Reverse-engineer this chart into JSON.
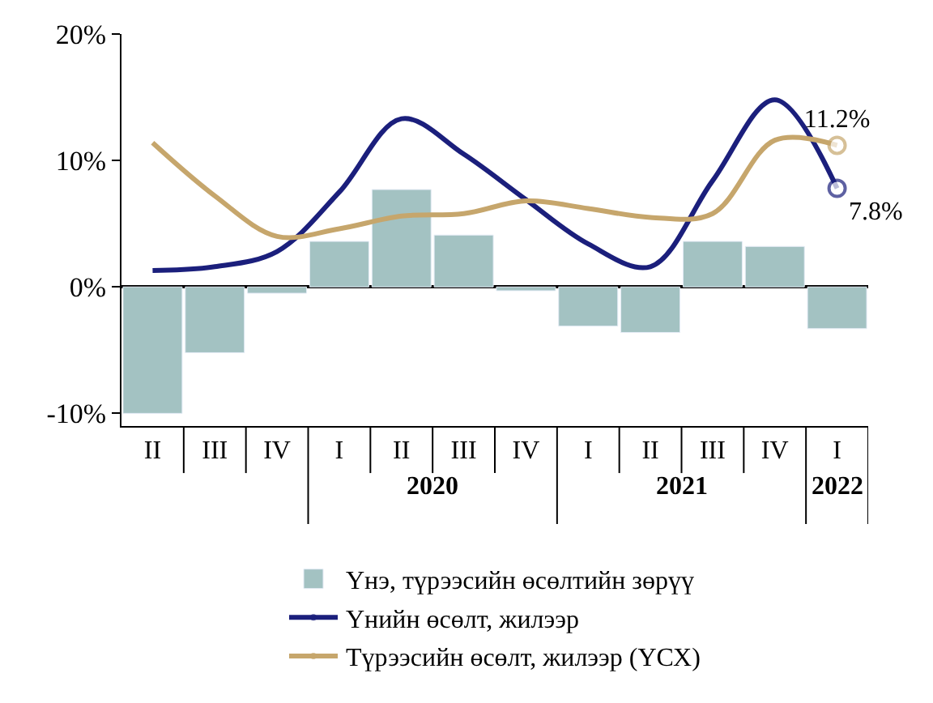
{
  "chart_data": {
    "type": "bar",
    "categories": [
      "II",
      "III",
      "IV",
      "I",
      "II",
      "III",
      "IV",
      "I",
      "II",
      "III",
      "IV",
      "I"
    ],
    "annotations": [
      "2020",
      "2021",
      "2022"
    ],
    "series": [
      {
        "name": "Үнэ, түрээсийн өсөлтийн зөрүү",
        "color": "#a3c2c2",
        "values": [
          -10,
          -5.2,
          -0.5,
          3.6,
          7.7,
          4.1,
          -0.3,
          -3.1,
          -3.6,
          3.6,
          3.2,
          -3.3
        ]
      },
      {
        "name": "Үнийн өсөлт, жилээр",
        "type": "line",
        "color": "#1b1f7c",
        "values": [
          1.3,
          1.6,
          2.8,
          7.5,
          13.3,
          10.5,
          6.9,
          3.4,
          1.6,
          8.4,
          14.8,
          7.8
        ],
        "value_labels": [
          null,
          null,
          null,
          null,
          null,
          null,
          null,
          null,
          null,
          null,
          null,
          "7.8%"
        ]
      },
      {
        "name": "Түрээсийн өсөлт, жилээр (ҮСХ)",
        "type": "line",
        "color": "#c6a66c",
        "values": [
          11.4,
          7.2,
          4.0,
          4.6,
          5.6,
          5.8,
          6.8,
          6.2,
          5.5,
          5.8,
          11.6,
          11.2
        ],
        "value_labels": [
          null,
          null,
          null,
          null,
          null,
          null,
          null,
          null,
          null,
          null,
          null,
          "11.2%"
        ]
      }
    ],
    "ylim": [
      -11,
      20
    ],
    "yticks": [
      {
        "value": -10,
        "label": "-10%"
      },
      {
        "value": 0,
        "label": "0%"
      },
      {
        "value": 10,
        "label": "10%"
      },
      {
        "value": 20,
        "label": "20%"
      }
    ],
    "legend": "bottom"
  }
}
